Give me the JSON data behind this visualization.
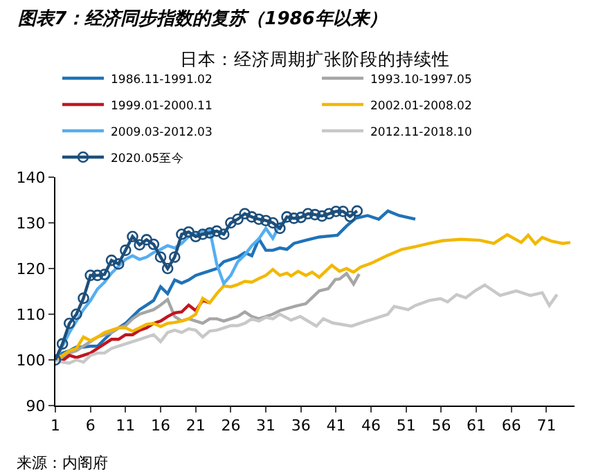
{
  "chart_data": {
    "type": "line",
    "title": "图表7：经济同步指数的复苏（1986年以来）",
    "subtitle": "日本：经济周期扩张阶段的持续性",
    "annotations": [
      "来源：内阁府"
    ],
    "xlim": [
      1,
      75
    ],
    "xticks": [
      1,
      6,
      11,
      16,
      21,
      26,
      31,
      36,
      41,
      46,
      51,
      56,
      61,
      66,
      71
    ],
    "ylim": [
      90,
      140
    ],
    "yticks": [
      90,
      100,
      110,
      120,
      130,
      140
    ],
    "grid": false,
    "legend": "top left",
    "series": [
      {
        "name": "1986.11-1991.02",
        "color": "#1f72b8",
        "marker": "none",
        "x": [
          1,
          2,
          3,
          4,
          5,
          6,
          7,
          8,
          9,
          10,
          11,
          12,
          13,
          14,
          15,
          16,
          17,
          18,
          19,
          20,
          21,
          22,
          23,
          24,
          25,
          26,
          27,
          28,
          29,
          30,
          31,
          32,
          33,
          34,
          35,
          36.7,
          38.6,
          41.2,
          42.5,
          43.8,
          45.5,
          47.1,
          48.4,
          50,
          52.3
        ],
        "values": [
          100,
          101.5,
          102,
          102.8,
          102.8,
          103,
          103,
          104.5,
          106,
          107,
          108,
          109.5,
          111,
          112,
          113,
          116,
          114.5,
          117.5,
          116.8,
          117.5,
          118.5,
          119,
          119.5,
          120,
          121.5,
          122,
          122.5,
          123.5,
          122.8,
          126.5,
          124,
          124,
          124.5,
          124.2,
          125.5,
          126.2,
          126.9,
          127.3,
          129.3,
          131,
          131.6,
          130.8,
          132.6,
          131.6,
          130.8
        ]
      },
      {
        "name": "1993.10-1997.05",
        "color": "#a6a6a6",
        "marker": "none",
        "x": [
          1,
          2,
          3,
          4,
          5,
          6,
          7,
          8,
          9,
          10,
          11,
          12,
          13,
          14,
          15,
          16,
          17,
          18,
          19,
          20,
          21,
          22,
          23,
          24,
          25,
          26,
          27,
          28,
          29,
          30,
          31,
          32,
          33,
          35.3,
          36.7,
          38.6,
          39.9,
          40.9,
          41.5,
          42.5,
          43.5,
          44.3
        ],
        "values": [
          100,
          100.5,
          101.5,
          102,
          103,
          104,
          105,
          105.5,
          106,
          107,
          107.5,
          109,
          110,
          110.5,
          111,
          112,
          113.2,
          109.5,
          108.5,
          109,
          108.5,
          108,
          109,
          109,
          108.5,
          109,
          109.5,
          110.5,
          109.5,
          109,
          109.5,
          110,
          110.8,
          111.8,
          112.3,
          115.1,
          115.6,
          117.6,
          117.7,
          118.9,
          116.6,
          118.8
        ]
      },
      {
        "name": "1999.01-2000.11",
        "color": "#c0161e",
        "marker": "none",
        "x": [
          1,
          2,
          3,
          4,
          5,
          6,
          7,
          8,
          9,
          10,
          11,
          12,
          13,
          14,
          15,
          16,
          17,
          18,
          19,
          20,
          21,
          22,
          23
        ],
        "values": [
          100,
          99.8,
          101,
          100.5,
          101,
          101.5,
          102.5,
          103.5,
          104.5,
          104.5,
          105.5,
          105.5,
          106.5,
          107,
          108,
          108.5,
          109.5,
          110.3,
          110.5,
          112,
          110.8,
          113,
          112.5
        ]
      },
      {
        "name": "2002.01-2008.02",
        "color": "#f2b800",
        "marker": "none",
        "x": [
          1,
          2,
          3,
          4,
          5,
          6,
          7,
          8,
          9,
          10,
          11,
          12,
          13,
          14,
          15,
          16,
          17,
          18,
          19,
          20,
          21,
          22,
          23,
          24,
          25,
          26,
          27,
          28,
          29,
          30,
          31,
          32,
          33,
          34,
          34.6,
          35.6,
          36.7,
          37.6,
          38.6,
          40.4,
          41.5,
          42.5,
          43.5,
          44.5,
          46.1,
          48.4,
          50.4,
          52.3,
          54.3,
          56.2,
          58.8,
          61.5,
          63.5,
          65.4,
          67.4,
          68.4,
          69.4,
          70.4,
          71.7,
          73.3,
          74.4
        ],
        "values": [
          100,
          101,
          102,
          102.5,
          105,
          104.2,
          105,
          106,
          106.5,
          107,
          107,
          106.3,
          107,
          107.8,
          108,
          107.3,
          108,
          108.2,
          108.5,
          109,
          110,
          113.5,
          112.5,
          114.5,
          116.2,
          116,
          116.5,
          117.2,
          117,
          117.8,
          118.5,
          119.8,
          118.5,
          119,
          118.4,
          119.4,
          118.5,
          119.2,
          118.1,
          120.7,
          119.4,
          120,
          119.2,
          120.3,
          121.2,
          122.9,
          124.2,
          124.8,
          125.5,
          126.1,
          126.4,
          126.2,
          125.5,
          127.4,
          125.7,
          127.3,
          125.4,
          126.8,
          126,
          125.5,
          125.7
        ]
      },
      {
        "name": "2009.03-2012.03",
        "color": "#55aef0",
        "marker": "none",
        "x": [
          1,
          2,
          3,
          4,
          5,
          6,
          7,
          8,
          9,
          10,
          11,
          12,
          13,
          14,
          15,
          16,
          17,
          18,
          19,
          20,
          21,
          22,
          23,
          24,
          25,
          26,
          27,
          28,
          29,
          30,
          31,
          32,
          33,
          34
        ],
        "values": [
          100,
          103,
          106,
          108.5,
          111,
          113,
          115.5,
          117,
          119,
          120.5,
          122,
          122.8,
          122,
          122.5,
          123.5,
          124.2,
          125,
          124.5,
          125.5,
          127,
          127.5,
          128,
          128.5,
          121,
          116.7,
          118.5,
          121.5,
          123,
          125,
          126.5,
          128.8,
          126.6,
          129.7,
          130.5
        ]
      },
      {
        "name": "2012.11-2018.10",
        "color": "#c8c8c8",
        "marker": "none",
        "x": [
          1,
          2,
          3,
          4,
          5,
          6,
          7,
          8,
          9,
          10,
          11,
          12,
          13,
          14,
          15,
          16,
          17,
          18,
          19,
          20,
          21,
          22,
          23,
          24,
          25,
          26,
          27,
          28,
          29,
          30,
          31,
          32,
          33,
          34.6,
          35.9,
          38.2,
          39.2,
          40.5,
          43.2,
          45.1,
          46.4,
          48.4,
          49.3,
          51.3,
          52.3,
          54.3,
          55.9,
          56.9,
          58.2,
          59.5,
          60.8,
          62.2,
          64.4,
          66.7,
          68.7,
          70.4,
          71.4,
          72.5
        ],
        "values": [
          100,
          99.5,
          99.3,
          100,
          99.5,
          101,
          101.5,
          101.5,
          102.5,
          103,
          103.5,
          104,
          104.5,
          105,
          105.5,
          104,
          106,
          106.5,
          106,
          106.8,
          106.5,
          105,
          106.3,
          106.5,
          107,
          107.5,
          107.5,
          108,
          109,
          108.5,
          109.3,
          109,
          110,
          108.7,
          109.5,
          107.4,
          109,
          108.1,
          107.4,
          108.4,
          109,
          110,
          111.7,
          111,
          111.9,
          113,
          113.4,
          112.7,
          114.3,
          113.6,
          115.1,
          116.4,
          114.1,
          115.1,
          114.1,
          114.7,
          111.9,
          114.3
        ]
      },
      {
        "name": "2020.05至今",
        "color": "#1d4f7c",
        "marker": "circle",
        "x": [
          1,
          2,
          3,
          4,
          5,
          6,
          7,
          8,
          9,
          10,
          11,
          12,
          13,
          14,
          15,
          16,
          17,
          18,
          19,
          20,
          21,
          22,
          23,
          24,
          25,
          26,
          27,
          28,
          29,
          30,
          31,
          32,
          33,
          34,
          35,
          36,
          37,
          38,
          39,
          40,
          41,
          42,
          43,
          44
        ],
        "values": [
          100,
          103.5,
          108,
          110,
          113.5,
          118.5,
          118.5,
          118.7,
          121.8,
          121,
          124,
          127,
          125.2,
          126.3,
          125.3,
          122.5,
          120,
          122.5,
          127.5,
          128,
          127,
          127.5,
          127.8,
          128.2,
          127.5,
          130,
          130.8,
          132,
          131.3,
          130.8,
          130.5,
          130,
          128.8,
          131.3,
          131,
          131.2,
          132,
          131.8,
          131.5,
          132,
          132.5,
          132.5,
          131.4,
          132.6
        ]
      }
    ]
  }
}
